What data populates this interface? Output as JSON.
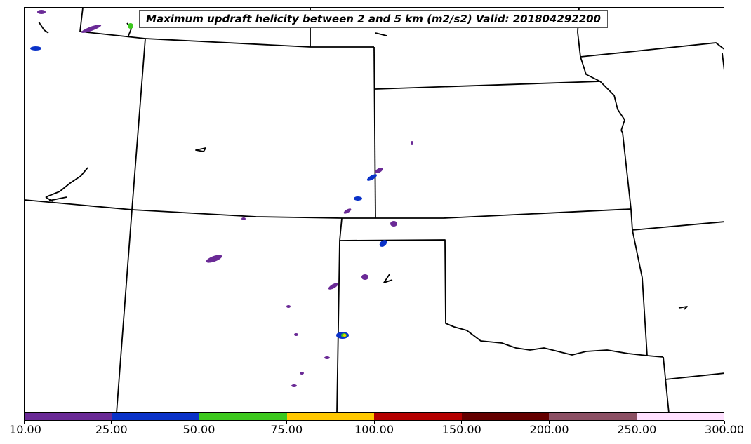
{
  "map": {
    "title": "Maximum updraft helicity between 2 and 5 km (m2/s2) Valid: 201804292200"
  },
  "colorbar": {
    "colors": [
      "#6a2a96",
      "#0a32c8",
      "#3cc81e",
      "#ffc800",
      "#b40000",
      "#640000",
      "#8c5064",
      "#ffe1ff"
    ],
    "tick_labels": [
      "10.00",
      "25.00",
      "50.00",
      "75.00",
      "100.00",
      "150.00",
      "200.00",
      "250.00",
      "300.00"
    ]
  }
}
